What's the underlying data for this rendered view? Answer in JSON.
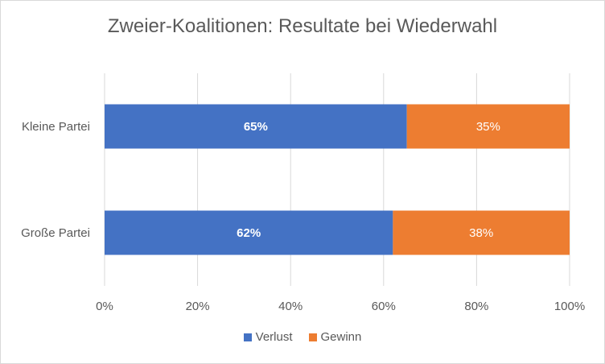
{
  "chart_data": {
    "type": "bar",
    "orientation": "horizontal",
    "stacked": "percent",
    "title": "Zweier-Koalitionen: Resultate bei Wiederwahl",
    "categories": [
      "Kleine Partei",
      "Große Partei"
    ],
    "series": [
      {
        "name": "Verlust",
        "values": [
          65,
          62
        ],
        "color": "#4472c4",
        "labels": [
          "65%",
          "62%"
        ]
      },
      {
        "name": "Gewinn",
        "values": [
          35,
          38
        ],
        "color": "#ed7d31",
        "labels": [
          "35%",
          "38%"
        ]
      }
    ],
    "xlim": [
      0,
      100
    ],
    "xticks": [
      "0%",
      "20%",
      "40%",
      "60%",
      "80%",
      "100%"
    ],
    "grid": true,
    "legend_position": "bottom"
  }
}
